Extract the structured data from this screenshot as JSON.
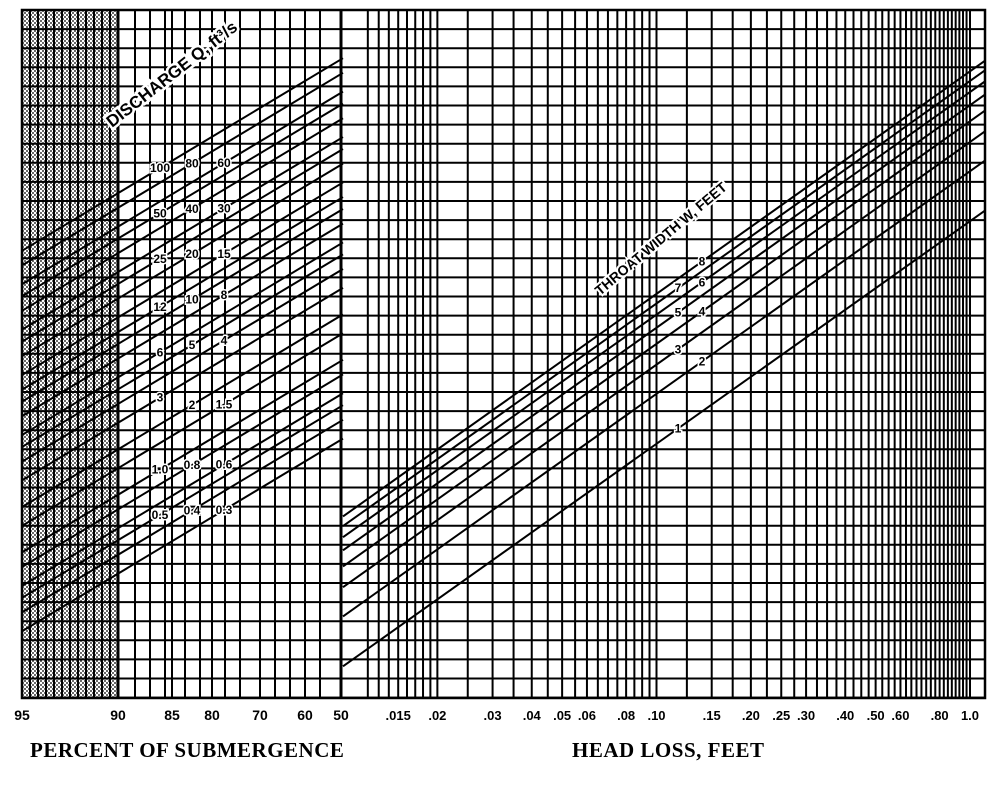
{
  "chart_data": {
    "type": "nomograph",
    "left_axis": {
      "xlabel": "PERCENT OF SUBMERGENCE",
      "ticks": [
        "95",
        "90",
        "85",
        "80",
        "70",
        "60",
        "50"
      ],
      "range": [
        95,
        50
      ]
    },
    "right_axis": {
      "xlabel": "HEAD LOSS, FEET",
      "scale": "log",
      "range": [
        0.01,
        1.0
      ],
      "ticks": [
        ".015",
        ".02",
        ".03",
        ".04",
        ".05",
        ".06",
        ".08",
        ".10",
        ".15",
        ".20",
        ".25",
        ".30",
        ".40",
        ".50",
        ".60",
        ".80",
        "1.0"
      ],
      "tick_values": [
        0.015,
        0.02,
        0.03,
        0.04,
        0.05,
        0.06,
        0.08,
        0.1,
        0.15,
        0.2,
        0.25,
        0.3,
        0.4,
        0.5,
        0.6,
        0.8,
        1.0
      ]
    },
    "discharge_family": {
      "label": "DISCHARGE Q, ft³/s",
      "values": [
        100,
        80,
        60,
        50,
        40,
        30,
        25,
        20,
        15,
        12,
        10,
        8,
        6,
        5,
        4,
        3,
        2,
        1.5,
        1.0,
        0.8,
        0.6,
        0.5,
        0.4,
        0.3
      ],
      "value_labels": [
        "100",
        "80",
        "60",
        "50",
        "40",
        "30",
        "25",
        "20",
        "15",
        "12",
        "10",
        "8",
        "6",
        "5",
        "4",
        "3",
        "2",
        "1.5",
        "1.0",
        "0.8",
        "0.6",
        "0.5",
        "0.4",
        "0.3"
      ]
    },
    "throat_family": {
      "label": "THROAT WIDTH W, FEET",
      "values": [
        1,
        2,
        3,
        4,
        5,
        6,
        7,
        8
      ],
      "value_labels": [
        "1",
        "2",
        "3",
        "4",
        "5",
        "6",
        "7",
        "8"
      ]
    },
    "grid": true,
    "hatched_region": [
      95,
      90
    ],
    "colors": {
      "ink": "#000000",
      "paper": "#ffffff"
    }
  }
}
